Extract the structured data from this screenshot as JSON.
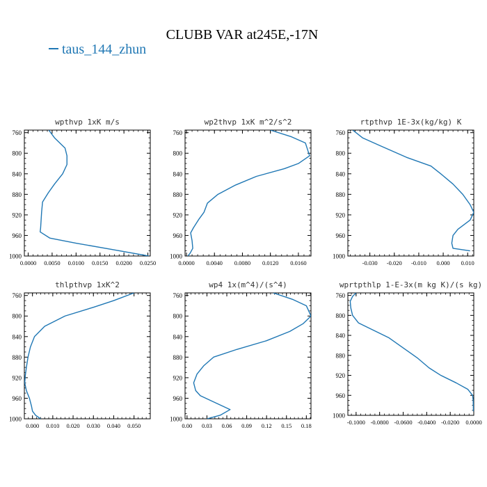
{
  "figure": {
    "title": "CLUBB VAR at245E,-17N",
    "legend": [
      {
        "label": "taus_144_zhun",
        "color": "#1f77b4"
      }
    ]
  },
  "chart_data": [
    {
      "type": "line",
      "title": "wpthvp  1xK m/s",
      "xlim": [
        -0.0008,
        0.0255
      ],
      "ylim": [
        1000,
        755
      ],
      "xticks": [
        0.0,
        0.005,
        0.01,
        0.015,
        0.02,
        0.025
      ],
      "xtick_labels": [
        "0.0000",
        "0.0050",
        "0.0100",
        "0.0150",
        "0.0200",
        "0.0250"
      ],
      "yticks": [
        760,
        800,
        840,
        880,
        920,
        960,
        1000
      ],
      "series": [
        {
          "color": "#1f77b4",
          "x": [
            0.0043,
            0.0055,
            0.0077,
            0.0081,
            0.0081,
            0.0072,
            0.0055,
            0.0042,
            0.003,
            0.0028,
            0.0027,
            0.0026,
            0.0025,
            0.0045,
            0.01,
            0.018,
            0.0252
          ],
          "y": [
            755,
            770,
            790,
            805,
            822,
            840,
            860,
            877,
            895,
            915,
            930,
            945,
            953,
            965,
            975,
            988,
            1000
          ]
        }
      ]
    },
    {
      "type": "line",
      "title": "wp2thvp  1xK m^2/s^2",
      "xlim": [
        -0.0002,
        0.0178
      ],
      "ylim": [
        1000,
        755
      ],
      "xticks": [
        0.0,
        0.004,
        0.008,
        0.012,
        0.016
      ],
      "xtick_labels": [
        "0.0000",
        "0.0040",
        "0.0080",
        "0.0120",
        "0.0160"
      ],
      "yticks": [
        760,
        800,
        840,
        880,
        920,
        960,
        1000
      ],
      "series": [
        {
          "color": "#1f77b4",
          "x": [
            0.012,
            0.015,
            0.017,
            0.0176,
            0.016,
            0.014,
            0.01,
            0.007,
            0.0045,
            0.003,
            0.0025,
            0.0018,
            0.001,
            0.0006,
            0.0008,
            0.0009,
            0.0005,
            0.0002
          ],
          "y": [
            755,
            768,
            780,
            805,
            820,
            830,
            845,
            862,
            880,
            897,
            915,
            928,
            945,
            955,
            970,
            985,
            995,
            1000
          ]
        }
      ]
    },
    {
      "type": "line",
      "title": "rtpthvp  1E-3x(kg/kg) K",
      "xlim": [
        -0.039,
        0.0125
      ],
      "ylim": [
        1000,
        755
      ],
      "xticks": [
        -0.03,
        -0.02,
        -0.01,
        0.0,
        0.01
      ],
      "xtick_labels": [
        "-0.030",
        "-0.020",
        "-0.010",
        "0.000",
        "0.010"
      ],
      "yticks": [
        760,
        800,
        840,
        880,
        920,
        960,
        1000
      ],
      "series": [
        {
          "color": "#1f77b4",
          "x": [
            -0.037,
            -0.033,
            -0.026,
            -0.015,
            -0.005,
            -0.001,
            0.004,
            0.008,
            0.011,
            0.0125,
            0.011,
            0.006,
            0.004,
            0.0035,
            0.004,
            0.011
          ],
          "y": [
            755,
            770,
            785,
            808,
            825,
            840,
            860,
            880,
            900,
            915,
            930,
            948,
            960,
            975,
            985,
            990
          ]
        }
      ]
    },
    {
      "type": "line",
      "title": "thlpthvp  1xK^2",
      "xlim": [
        -0.004,
        0.058
      ],
      "ylim": [
        1000,
        755
      ],
      "xticks": [
        0.0,
        0.01,
        0.02,
        0.03,
        0.04,
        0.05
      ],
      "xtick_labels": [
        "0.000",
        "0.010",
        "0.020",
        "0.030",
        "0.040",
        "0.050"
      ],
      "yticks": [
        760,
        800,
        840,
        880,
        920,
        960,
        1000
      ],
      "series": [
        {
          "color": "#1f77b4",
          "x": [
            0.05,
            0.04,
            0.03,
            0.016,
            0.006,
            0.001,
            -0.001,
            -0.0022,
            -0.003,
            -0.0035,
            -0.0038,
            -0.003,
            -0.0015,
            -0.0005,
            0.0,
            0.0015,
            0.004
          ],
          "y": [
            755,
            770,
            783,
            800,
            820,
            840,
            860,
            880,
            900,
            915,
            930,
            945,
            960,
            975,
            985,
            993,
            1000
          ]
        }
      ]
    },
    {
      "type": "line",
      "title": "wp4  1x(m^4)/(s^4)",
      "xlim": [
        -0.003,
        0.187
      ],
      "ylim": [
        1000,
        755
      ],
      "xticks": [
        0.0,
        0.03,
        0.06,
        0.09,
        0.12,
        0.15,
        0.18
      ],
      "xtick_labels": [
        "0.00",
        "0.03",
        "0.06",
        "0.09",
        "0.12",
        "0.15",
        "0.18"
      ],
      "yticks": [
        760,
        800,
        840,
        880,
        920,
        960,
        1000
      ],
      "series": [
        {
          "color": "#1f77b4",
          "x": [
            0.13,
            0.16,
            0.18,
            0.187,
            0.175,
            0.155,
            0.12,
            0.075,
            0.04,
            0.025,
            0.015,
            0.01,
            0.013,
            0.02,
            0.045,
            0.065,
            0.05,
            0.03
          ],
          "y": [
            755,
            768,
            780,
            800,
            815,
            830,
            848,
            865,
            880,
            897,
            913,
            930,
            945,
            955,
            970,
            982,
            993,
            1000
          ]
        }
      ]
    },
    {
      "type": "line",
      "title": "wprtpthlp  1-E-3x(m kg K)/(s kg)",
      "xlim": [
        -0.107,
        0.0
      ],
      "ylim": [
        1000,
        755
      ],
      "xticks": [
        -0.1,
        -0.08,
        -0.06,
        -0.04,
        -0.02,
        0.0
      ],
      "xtick_labels": [
        "-0.1000",
        "-0.0800",
        "-0.0600",
        "-0.0400",
        "-0.0200",
        "0.0000"
      ],
      "yticks": [
        760,
        800,
        840,
        880,
        920,
        960,
        1000
      ],
      "series": [
        {
          "color": "#1f77b4",
          "x": [
            -0.1,
            -0.103,
            -0.105,
            -0.1045,
            -0.103,
            -0.098,
            -0.085,
            -0.072,
            -0.06,
            -0.048,
            -0.038,
            -0.028,
            -0.015,
            -0.005,
            -0.001,
            -0.0005,
            -0.0003
          ],
          "y": [
            755,
            762,
            772,
            785,
            800,
            815,
            830,
            845,
            865,
            885,
            905,
            920,
            935,
            948,
            960,
            970,
            992
          ]
        }
      ]
    }
  ]
}
